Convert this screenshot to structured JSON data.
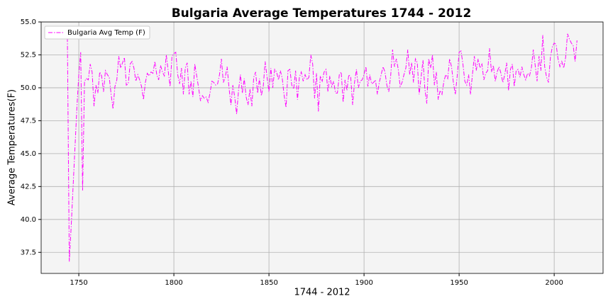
{
  "chart_data": {
    "type": "line",
    "title": "Bulgaria Average Temperatures 1744 - 2012",
    "x_label": "1744 - 2012",
    "y_label": "Average Temperatures(F)",
    "x": [
      1744,
      1745,
      1746,
      1747,
      1748,
      1749,
      1750,
      1751,
      1752,
      1753,
      1754,
      1755,
      1756,
      1757,
      1758,
      1759,
      1760,
      1761,
      1762,
      1763,
      1764,
      1765,
      1766,
      1767,
      1768,
      1769,
      1770,
      1771,
      1772,
      1773,
      1774,
      1775,
      1776,
      1777,
      1778,
      1779,
      1780,
      1781,
      1782,
      1783,
      1784,
      1785,
      1786,
      1787,
      1788,
      1789,
      1790,
      1791,
      1792,
      1793,
      1794,
      1795,
      1796,
      1797,
      1798,
      1799,
      1800,
      1801,
      1802,
      1803,
      1804,
      1805,
      1806,
      1807,
      1808,
      1809,
      1810,
      1811,
      1812,
      1813,
      1814,
      1815,
      1816,
      1817,
      1818,
      1819,
      1820,
      1821,
      1822,
      1823,
      1824,
      1825,
      1826,
      1827,
      1828,
      1829,
      1830,
      1831,
      1832,
      1833,
      1834,
      1835,
      1836,
      1837,
      1838,
      1839,
      1840,
      1841,
      1842,
      1843,
      1844,
      1845,
      1846,
      1847,
      1848,
      1849,
      1850,
      1851,
      1852,
      1853,
      1854,
      1855,
      1856,
      1857,
      1858,
      1859,
      1860,
      1861,
      1862,
      1863,
      1864,
      1865,
      1866,
      1867,
      1868,
      1869,
      1870,
      1871,
      1872,
      1873,
      1874,
      1875,
      1876,
      1877,
      1878,
      1879,
      1880,
      1881,
      1882,
      1883,
      1884,
      1885,
      1886,
      1887,
      1888,
      1889,
      1890,
      1891,
      1892,
      1893,
      1894,
      1895,
      1896,
      1897,
      1898,
      1899,
      1900,
      1901,
      1902,
      1903,
      1904,
      1905,
      1906,
      1907,
      1908,
      1909,
      1910,
      1911,
      1912,
      1913,
      1914,
      1915,
      1916,
      1917,
      1918,
      1919,
      1920,
      1921,
      1922,
      1923,
      1924,
      1925,
      1926,
      1927,
      1928,
      1929,
      1930,
      1931,
      1932,
      1933,
      1934,
      1935,
      1936,
      1937,
      1938,
      1939,
      1940,
      1941,
      1942,
      1943,
      1944,
      1945,
      1946,
      1947,
      1948,
      1949,
      1950,
      1951,
      1952,
      1953,
      1954,
      1955,
      1956,
      1957,
      1958,
      1959,
      1960,
      1961,
      1962,
      1963,
      1964,
      1965,
      1966,
      1967,
      1968,
      1969,
      1970,
      1971,
      1972,
      1973,
      1974,
      1975,
      1976,
      1977,
      1978,
      1979,
      1980,
      1981,
      1982,
      1983,
      1984,
      1985,
      1986,
      1987,
      1988,
      1989,
      1990,
      1991,
      1992,
      1993,
      1994,
      1995,
      1996,
      1997,
      1998,
      1999,
      2000,
      2001,
      2002,
      2003,
      2004,
      2005,
      2006,
      2007,
      2008,
      2009,
      2010,
      2011,
      2012
    ],
    "series": [
      {
        "name": "Bulgaria Avg Temp (F)",
        "color": "#ff00ff",
        "values": [
          53.8,
          36.8,
          39.5,
          42.5,
          45.5,
          48.5,
          51.0,
          52.7,
          42.2,
          50.5,
          50.7,
          50.6,
          51.8,
          51.2,
          48.6,
          50.2,
          49.6,
          51.2,
          50.9,
          49.7,
          51.3,
          51.0,
          50.8,
          49.5,
          48.4,
          50.1,
          50.6,
          52.4,
          51.5,
          51.9,
          52.3,
          50.2,
          50.3,
          51.8,
          52.0,
          51.5,
          50.5,
          51.0,
          50.6,
          50.1,
          49.1,
          50.4,
          51.1,
          50.9,
          51.2,
          51.1,
          52.0,
          51.0,
          50.6,
          51.7,
          51.2,
          50.9,
          52.5,
          51.3,
          50.1,
          52.4,
          52.6,
          52.7,
          51.0,
          50.3,
          51.5,
          49.5,
          51.5,
          51.9,
          49.5,
          50.5,
          49.3,
          51.8,
          50.9,
          50.0,
          49.0,
          49.4,
          49.2,
          49.3,
          48.9,
          49.6,
          50.5,
          50.4,
          50.2,
          50.3,
          51.0,
          52.2,
          50.4,
          50.8,
          51.6,
          50.0,
          48.7,
          50.2,
          49.3,
          48.0,
          49.8,
          51.0,
          49.6,
          50.7,
          49.3,
          48.7,
          49.9,
          48.6,
          50.8,
          51.2,
          49.6,
          50.7,
          49.4,
          50.1,
          52.0,
          50.8,
          49.7,
          51.5,
          50.0,
          51.4,
          51.2,
          50.6,
          51.3,
          50.7,
          49.4,
          48.5,
          51.3,
          51.4,
          50.2,
          49.9,
          51.3,
          49.1,
          50.8,
          51.2,
          50.5,
          51.0,
          50.6,
          50.8,
          52.5,
          51.8,
          49.2,
          51.1,
          48.2,
          50.9,
          50.5,
          51.2,
          51.4,
          49.7,
          50.9,
          50.1,
          50.5,
          49.6,
          49.6,
          51.0,
          51.2,
          48.9,
          50.6,
          49.8,
          51.0,
          50.8,
          48.7,
          50.4,
          51.4,
          50.0,
          50.5,
          50.6,
          51.0,
          51.6,
          50.1,
          51.0,
          50.3,
          50.4,
          50.6,
          49.5,
          50.4,
          51.0,
          51.6,
          51.2,
          50.2,
          49.7,
          50.9,
          52.9,
          51.6,
          52.2,
          51.4,
          50.1,
          50.4,
          51.0,
          51.5,
          52.9,
          51.0,
          51.9,
          50.4,
          52.2,
          51.9,
          49.5,
          50.8,
          52.1,
          49.9,
          48.8,
          52.2,
          51.5,
          52.5,
          50.2,
          51.2,
          49.1,
          49.8,
          49.5,
          50.5,
          51.0,
          50.7,
          52.2,
          51.6,
          50.4,
          49.5,
          50.9,
          52.7,
          52.8,
          51.8,
          50.5,
          50.2,
          51.0,
          49.5,
          51.0,
          52.4,
          51.3,
          52.2,
          51.5,
          51.8,
          50.6,
          51.1,
          51.3,
          53.0,
          51.2,
          51.7,
          50.5,
          51.2,
          51.6,
          51.1,
          50.4,
          51.0,
          51.9,
          49.8,
          51.4,
          51.8,
          50.1,
          51.3,
          51.4,
          50.8,
          51.6,
          51.0,
          50.6,
          51.1,
          50.9,
          51.5,
          52.9,
          51.7,
          50.5,
          52.4,
          51.3,
          54.0,
          51.6,
          50.8,
          50.4,
          52.3,
          53.1,
          53.4,
          53.3,
          52.2,
          51.6,
          52.0,
          51.5,
          52.3,
          54.1,
          53.7,
          53.4,
          53.2,
          52.0,
          53.6
        ]
      }
    ],
    "xlim": [
      1730.2,
      2025.7
    ],
    "xticks": [
      1750,
      1800,
      1850,
      1900,
      1950,
      2000
    ],
    "ylim": [
      35.9,
      55
    ],
    "yticks": [
      37.5,
      {
        "value": 40,
        "label": "40.0"
      },
      42.5,
      {
        "value": 45,
        "label": "45.0"
      },
      47.5,
      {
        "value": 50,
        "label": "50.0"
      },
      52.5,
      {
        "value": 55,
        "label": "55.0"
      }
    ],
    "grid": true,
    "legend": "upper left"
  }
}
